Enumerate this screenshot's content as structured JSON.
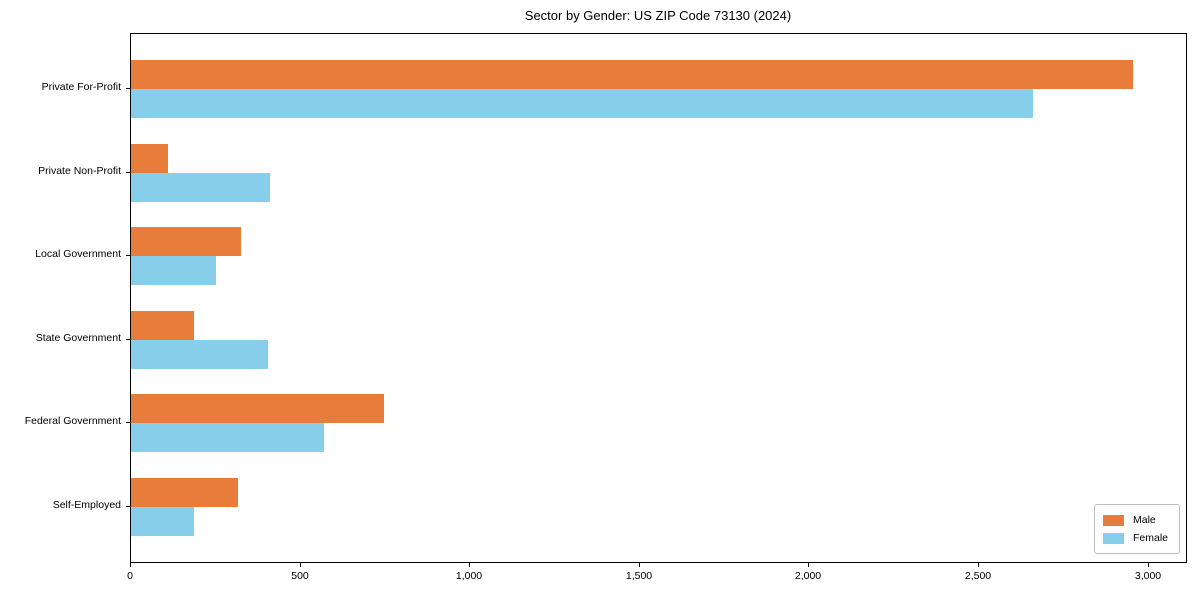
{
  "chart_data": {
    "type": "bar",
    "orientation": "horizontal",
    "title": "Sector by Gender: US ZIP Code 73130 (2024)",
    "categories": [
      "Private For-Profit",
      "Private Non-Profit",
      "Local Government",
      "State Government",
      "Federal Government",
      "Self-Employed"
    ],
    "series": [
      {
        "name": "Male",
        "color": "#e87d3b",
        "values": [
          2955,
          110,
          325,
          185,
          745,
          315
        ]
      },
      {
        "name": "Female",
        "color": "#87ceeb",
        "values": [
          2660,
          410,
          250,
          405,
          570,
          185
        ]
      }
    ],
    "xlabel": "",
    "ylabel": "",
    "xlim": [
      0,
      3110
    ],
    "x_ticks": [
      0,
      500,
      1000,
      1500,
      2000,
      2500,
      3000
    ],
    "x_tick_labels": [
      "0",
      "500",
      "1,000",
      "1,500",
      "2,000",
      "2,500",
      "3,000"
    ],
    "grid": false,
    "legend": {
      "position": "lower right"
    }
  }
}
